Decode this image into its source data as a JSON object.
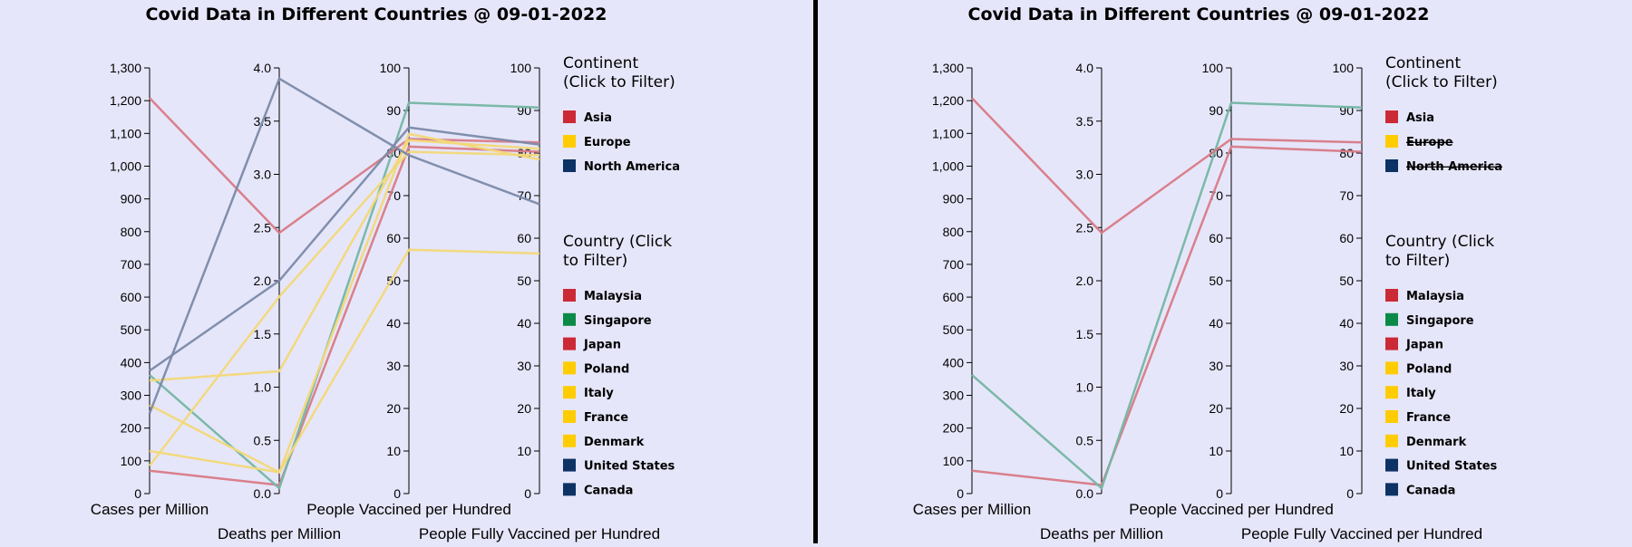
{
  "chart_data": [
    {
      "type": "parallel-coordinates",
      "title": "Covid Data in Different Countries @ 09-01-2022",
      "axes": [
        {
          "key": "cases",
          "label": "Cases per Million",
          "range": [
            0,
            1300
          ],
          "ticks": [
            "0",
            "100",
            "200",
            "300",
            "400",
            "500",
            "600",
            "700",
            "800",
            "900",
            "1,000",
            "1,100",
            "1,200",
            "1,300"
          ]
        },
        {
          "key": "deaths",
          "label": "Deaths per Million",
          "range": [
            0,
            4
          ],
          "ticks": [
            "0.0",
            "0.5",
            "1.0",
            "1.5",
            "2.0",
            "2.5",
            "3.0",
            "3.5",
            "4.0"
          ]
        },
        {
          "key": "vacc",
          "label": "People Vaccined per Hundred",
          "range": [
            0,
            100
          ],
          "ticks": [
            "0",
            "10",
            "20",
            "30",
            "40",
            "50",
            "60",
            "70",
            "80",
            "90",
            "100"
          ]
        },
        {
          "key": "full",
          "label": "People Fully Vaccined per Hundred",
          "range": [
            0,
            100
          ],
          "ticks": [
            "0",
            "10",
            "20",
            "30",
            "40",
            "50",
            "60",
            "70",
            "80",
            "90",
            "100"
          ]
        }
      ],
      "colors": {
        "Asia": "#cc2936",
        "Europe": "#ffcc00",
        "North America": "#0d3264",
        "Singapore": "#0b8a47"
      },
      "series": [
        {
          "name": "Malaysia",
          "continent": "Asia",
          "values": [
            70,
            0.08,
            81.5,
            80.3
          ]
        },
        {
          "name": "Singapore",
          "continent": "Asia",
          "values": [
            362,
            0.05,
            91.8,
            90.7
          ]
        },
        {
          "name": "Japan",
          "continent": "Asia",
          "values": [
            1208,
            2.45,
            83.3,
            82.5
          ]
        },
        {
          "name": "Poland",
          "continent": "Europe",
          "values": [
            270,
            0.2,
            57.3,
            56.4
          ]
        },
        {
          "name": "Italy",
          "continent": "Europe",
          "values": [
            130,
            0.2,
            84.5,
            78.5
          ]
        },
        {
          "name": "France",
          "continent": "Europe",
          "values": [
            85,
            1.85,
            80.3,
            79.5
          ]
        },
        {
          "name": "Denmark",
          "continent": "Europe",
          "values": [
            345,
            1.15,
            83.0,
            81.0
          ]
        },
        {
          "name": "United States",
          "continent": "North America",
          "values": [
            245,
            3.9,
            79.5,
            68.0
          ]
        },
        {
          "name": "Canada",
          "continent": "North America",
          "values": [
            375,
            2.0,
            86.0,
            82.0
          ]
        }
      ],
      "legend": {
        "continent_title": "Continent (Click to Filter)",
        "continents": [
          {
            "label": "Asia",
            "color": "#cc2936",
            "active": true
          },
          {
            "label": "Europe",
            "color": "#ffcc00",
            "active": true
          },
          {
            "label": "North America",
            "color": "#0d3264",
            "active": true
          }
        ],
        "country_title": "Country (Click to Filter)",
        "countries": [
          {
            "label": "Malaysia",
            "color": "#cc2936"
          },
          {
            "label": "Singapore",
            "color": "#0b8a47"
          },
          {
            "label": "Japan",
            "color": "#cc2936"
          },
          {
            "label": "Poland",
            "color": "#ffcc00"
          },
          {
            "label": "Italy",
            "color": "#ffcc00"
          },
          {
            "label": "France",
            "color": "#ffcc00"
          },
          {
            "label": "Denmark",
            "color": "#ffcc00"
          },
          {
            "label": "United States",
            "color": "#0d3264"
          },
          {
            "label": "Canada",
            "color": "#0d3264"
          }
        ]
      },
      "visible_countries": [
        "Malaysia",
        "Singapore",
        "Japan",
        "Poland",
        "Italy",
        "France",
        "Denmark",
        "United States",
        "Canada"
      ]
    },
    {
      "type": "parallel-coordinates",
      "title": "Covid Data in Different Countries @ 09-01-2022",
      "axes": [
        {
          "key": "cases",
          "label": "Cases per Million",
          "range": [
            0,
            1300
          ],
          "ticks": [
            "0",
            "100",
            "200",
            "300",
            "400",
            "500",
            "600",
            "700",
            "800",
            "900",
            "1,000",
            "1,100",
            "1,200",
            "1,300"
          ]
        },
        {
          "key": "deaths",
          "label": "Deaths per Million",
          "range": [
            0,
            4
          ],
          "ticks": [
            "0.0",
            "0.5",
            "1.0",
            "1.5",
            "2.0",
            "2.5",
            "3.0",
            "3.5",
            "4.0"
          ]
        },
        {
          "key": "vacc",
          "label": "People Vaccined per Hundred",
          "range": [
            0,
            100
          ],
          "ticks": [
            "0",
            "10",
            "20",
            "30",
            "40",
            "50",
            "60",
            "70",
            "80",
            "90",
            "100"
          ]
        },
        {
          "key": "full",
          "label": "People Fully Vaccined per Hundred",
          "range": [
            0,
            100
          ],
          "ticks": [
            "0",
            "10",
            "20",
            "30",
            "40",
            "50",
            "60",
            "70",
            "80",
            "90",
            "100"
          ]
        }
      ],
      "colors": {
        "Asia": "#cc2936",
        "Europe": "#ffcc00",
        "North America": "#0d3264",
        "Singapore": "#0b8a47"
      },
      "series": [
        {
          "name": "Malaysia",
          "continent": "Asia",
          "values": [
            70,
            0.08,
            81.5,
            80.3
          ]
        },
        {
          "name": "Singapore",
          "continent": "Asia",
          "values": [
            362,
            0.05,
            91.8,
            90.7
          ]
        },
        {
          "name": "Japan",
          "continent": "Asia",
          "values": [
            1208,
            2.45,
            83.3,
            82.5
          ]
        }
      ],
      "legend": {
        "continent_title": "Continent (Click to Filter)",
        "continents": [
          {
            "label": "Asia",
            "color": "#cc2936",
            "active": true
          },
          {
            "label": "Europe",
            "color": "#ffcc00",
            "active": false
          },
          {
            "label": "North America",
            "color": "#0d3264",
            "active": false
          }
        ],
        "country_title": "Country (Click to Filter)",
        "countries": [
          {
            "label": "Malaysia",
            "color": "#cc2936"
          },
          {
            "label": "Singapore",
            "color": "#0b8a47"
          },
          {
            "label": "Japan",
            "color": "#cc2936"
          },
          {
            "label": "Poland",
            "color": "#ffcc00"
          },
          {
            "label": "Italy",
            "color": "#ffcc00"
          },
          {
            "label": "France",
            "color": "#ffcc00"
          },
          {
            "label": "Denmark",
            "color": "#ffcc00"
          },
          {
            "label": "United States",
            "color": "#0d3264"
          },
          {
            "label": "Canada",
            "color": "#0d3264"
          }
        ]
      },
      "visible_countries": [
        "Malaysia",
        "Singapore",
        "Japan"
      ]
    }
  ]
}
